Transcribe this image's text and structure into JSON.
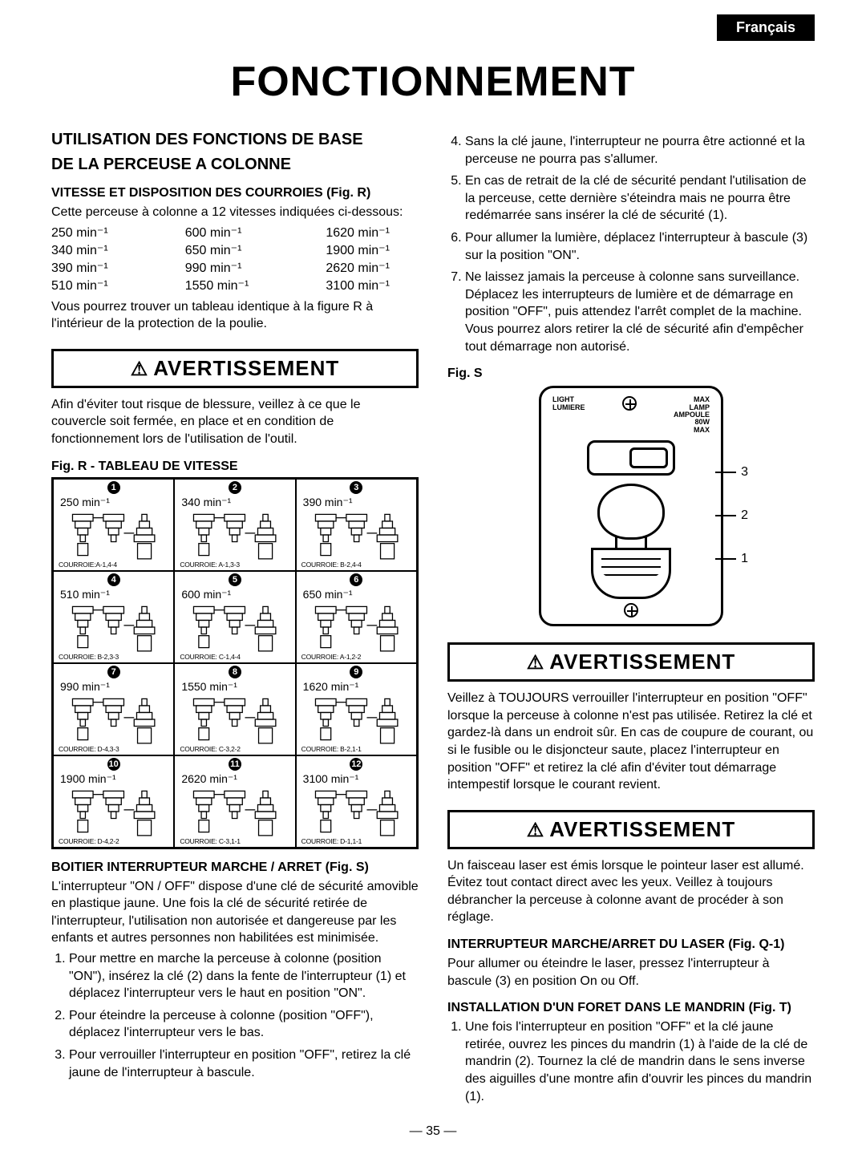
{
  "lang_tab": "Français",
  "page_title": "FONCTIONNEMENT",
  "page_number": "— 35 —",
  "left": {
    "h2a": "UTILISATION DES FONCTIONS DE BASE",
    "h2b": "DE LA PERCEUSE A COLONNE",
    "h3_speed": "VITESSE ET DISPOSITION DES COURROIES (Fig. R)",
    "p_speed_intro": "Cette perceuse à colonne a 12 vitesses indiquées ci-dessous:",
    "speeds": [
      "250 min⁻¹",
      "600 min⁻¹",
      "1620 min⁻¹",
      "340 min⁻¹",
      "650 min⁻¹",
      "1900 min⁻¹",
      "390 min⁻¹",
      "990 min⁻¹",
      "2620 min⁻¹",
      "510 min⁻¹",
      "1550 min⁻¹",
      "3100 min⁻¹"
    ],
    "p_speed_note": "Vous pourrez trouver un tableau identique à la figure R à l'intérieur de la protection de la poulie.",
    "warn1": "AVERTISSEMENT",
    "p_warn1": "Afin d'éviter tout risque de blessure, veillez à ce que le couvercle soit fermée, en place et en condition de fonctionnement lors de l'utilisation de l'outil.",
    "figR_title": "Fig. R - TABLEAU DE VITESSE",
    "figR_cells": [
      {
        "n": "1",
        "spd": "250 min⁻¹",
        "belt": "COURROIE:A-1,4-4"
      },
      {
        "n": "2",
        "spd": "340 min⁻¹",
        "belt": "COURROIE: A-1,3-3"
      },
      {
        "n": "3",
        "spd": "390 min⁻¹",
        "belt": "COURROIE: B-2,4-4"
      },
      {
        "n": "4",
        "spd": "510 min⁻¹",
        "belt": "COURROIE: B-2,3-3"
      },
      {
        "n": "5",
        "spd": "600 min⁻¹",
        "belt": "COURROIE: C-1,4-4"
      },
      {
        "n": "6",
        "spd": "650 min⁻¹",
        "belt": "COURROIE: A-1,2-2"
      },
      {
        "n": "7",
        "spd": "990 min⁻¹",
        "belt": "COURROIE: D-4,3-3"
      },
      {
        "n": "8",
        "spd": "1550 min⁻¹",
        "belt": "COURROIE: C-3,2-2"
      },
      {
        "n": "9",
        "spd": "1620 min⁻¹",
        "belt": "COURROIE: B-2,1-1"
      },
      {
        "n": "10",
        "spd": "1900 min⁻¹",
        "belt": "COURROIE: D-4,2-2"
      },
      {
        "n": "11",
        "spd": "2620 min⁻¹",
        "belt": "COURROIE: C-3,1-1"
      },
      {
        "n": "12",
        "spd": "3100 min⁻¹",
        "belt": "COURROIE: D-1,1-1"
      }
    ],
    "h3_switch": "BOITIER INTERRUPTEUR MARCHE / ARRET (Fig. S)",
    "p_switch": "L'interrupteur \"ON / OFF\" dispose d'une clé de sécurité amovible en plastique jaune. Une fois la clé de sécurité retirée de l'interrupteur, l'utilisation non autorisée et dangereuse par les enfants et autres personnes non habilitées est minimisée.",
    "ol_switch": [
      "Pour mettre en marche la perceuse à colonne (position \"ON\"), insérez la clé (2) dans la fente de l'interrupteur (1) et déplacez l'interrupteur vers le haut en position \"ON\".",
      "Pour éteindre la perceuse à colonne (position \"OFF\"), déplacez l'interrupteur vers le bas.",
      "Pour verrouiller l'interrupteur en position \"OFF\", retirez la clé jaune de l'interrupteur à bascule."
    ]
  },
  "right": {
    "ol_cont": [
      "Sans la clé jaune, l'interrupteur ne pourra être actionné et la perceuse ne pourra pas s'allumer.",
      "En cas de retrait de la clé de sécurité pendant l'utilisation de la perceuse, cette dernière s'éteindra mais ne pourra être redémarrée sans insérer la clé de sécurité (1).",
      "Pour allumer la lumière, déplacez l'interrupteur à bascule (3) sur la position \"ON\".",
      "Ne laissez jamais la perceuse à colonne sans surveillance. Déplacez les interrupteurs de lumière et de démarrage en position \"OFF\", puis attendez l'arrêt complet de la machine. Vous pourrez alors retirer la clé de sécurité afin d'empêcher tout démarrage non autorisé."
    ],
    "figS_title": "Fig. S",
    "figS_labels": {
      "left_top": "LIGHT\nLUMIERE",
      "right_top": "MAX\nLAMP\nAMPOULE\n80W\nMAX",
      "c3": "3",
      "c2": "2",
      "c1": "1"
    },
    "warn2": "AVERTISSEMENT",
    "p_warn2": "Veillez à TOUJOURS verrouiller l'interrupteur en position \"OFF\" lorsque la perceuse à colonne n'est pas utilisée. Retirez la clé et gardez-là dans un endroit sûr. En cas de coupure de courant, ou si le fusible ou le disjoncteur saute, placez l'interrupteur en position \"OFF\" et retirez la clé afin d'éviter tout démarrage intempestif lorsque le courant revient.",
    "warn3": "AVERTISSEMENT",
    "p_warn3": "Un faisceau laser est émis lorsque le pointeur laser est allumé. Évitez tout contact direct avec les yeux. Veillez à toujours débrancher la perceuse à colonne avant de procéder à son réglage.",
    "h3_laser": "INTERRUPTEUR MARCHE/ARRET DU LASER (Fig. Q-1)",
    "p_laser": "Pour allumer ou éteindre le laser, pressez l'interrupteur à bascule (3) en position On ou Off.",
    "h3_chuck": "INSTALLATION D'UN FORET DANS LE MANDRIN (Fig. T)",
    "ol_chuck": [
      "Une fois l'interrupteur en position \"OFF\" et la clé jaune retirée, ouvrez les pinces du mandrin (1) à l'aide de la clé de mandrin (2). Tournez la clé de mandrin dans le sens inverse des aiguilles d'une montre afin d'ouvrir les pinces du mandrin (1)."
    ]
  }
}
